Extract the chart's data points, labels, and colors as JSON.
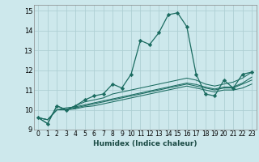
{
  "xlabel": "Humidex (Indice chaleur)",
  "background_color": "#cde8ec",
  "grid_color": "#aecfd4",
  "line_color": "#1a6b60",
  "xlim": [
    -0.5,
    23.5
  ],
  "ylim": [
    9,
    15.3
  ],
  "yticks": [
    9,
    10,
    11,
    12,
    13,
    14,
    15
  ],
  "xticks": [
    0,
    1,
    2,
    3,
    4,
    5,
    6,
    7,
    8,
    9,
    10,
    11,
    12,
    13,
    14,
    15,
    16,
    17,
    18,
    19,
    20,
    21,
    22,
    23
  ],
  "series": [
    [
      9.6,
      9.3,
      10.2,
      10.0,
      10.2,
      10.5,
      10.7,
      10.8,
      11.3,
      11.1,
      11.8,
      13.5,
      13.3,
      13.9,
      14.8,
      14.9,
      14.2,
      11.8,
      10.8,
      10.7,
      11.5,
      11.1,
      11.8,
      11.9
    ],
    [
      9.6,
      9.3,
      10.2,
      10.0,
      10.2,
      10.4,
      10.5,
      10.6,
      10.8,
      10.9,
      11.0,
      11.1,
      11.2,
      11.3,
      11.4,
      11.5,
      11.6,
      11.5,
      11.3,
      11.2,
      11.3,
      11.4,
      11.6,
      11.9
    ],
    [
      9.6,
      9.5,
      10.0,
      10.1,
      10.15,
      10.25,
      10.35,
      10.45,
      10.55,
      10.65,
      10.75,
      10.85,
      10.95,
      11.05,
      11.15,
      11.25,
      11.35,
      11.28,
      11.15,
      11.05,
      11.15,
      11.15,
      11.35,
      11.65
    ],
    [
      9.6,
      9.5,
      10.0,
      10.0,
      10.1,
      10.2,
      10.3,
      10.4,
      10.5,
      10.6,
      10.7,
      10.8,
      10.9,
      11.0,
      11.1,
      11.2,
      11.3,
      11.2,
      11.1,
      11.0,
      11.1,
      11.1,
      11.3,
      11.5
    ],
    [
      9.6,
      9.5,
      10.0,
      10.0,
      10.05,
      10.15,
      10.2,
      10.3,
      10.4,
      10.5,
      10.6,
      10.7,
      10.8,
      10.9,
      11.0,
      11.1,
      11.2,
      11.1,
      11.0,
      10.9,
      11.0,
      11.0,
      11.1,
      11.3
    ]
  ],
  "has_markers": [
    true,
    false,
    false,
    false,
    false
  ],
  "xlabel_fontsize": 6.5,
  "tick_fontsize": 5.5,
  "ytick_fontsize": 6.0
}
